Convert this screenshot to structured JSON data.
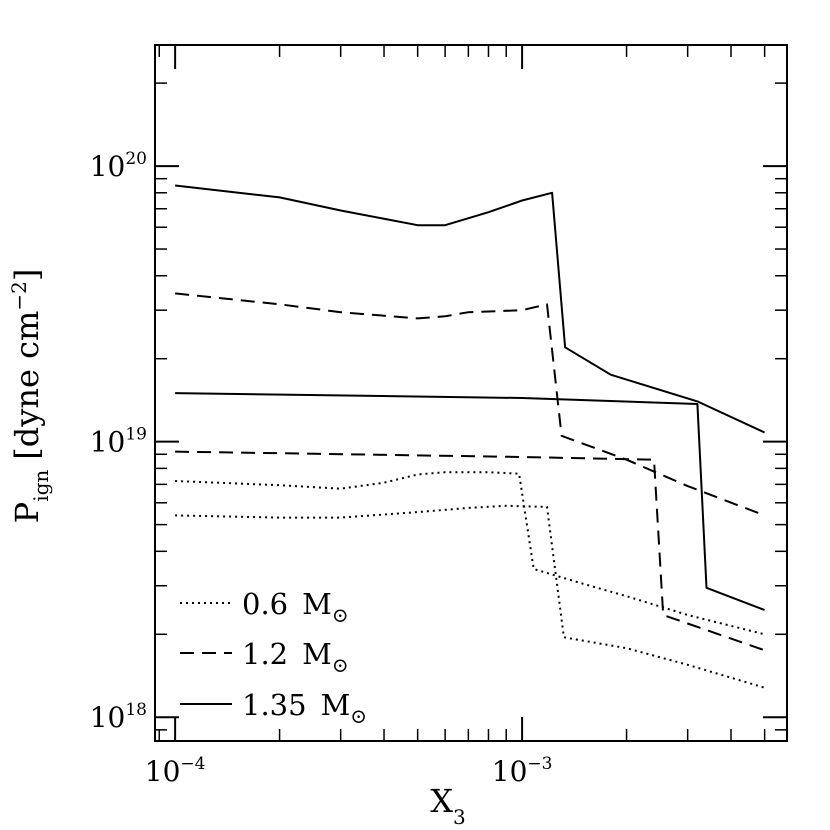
{
  "chart_data": {
    "type": "line",
    "xlabel": {
      "main": "X",
      "sub": "3"
    },
    "ylabel": {
      "main": "P",
      "sub": "ign",
      "unit_open": "[dyne cm",
      "unit_exp": "−2",
      "unit_close": "]"
    },
    "x_scale": "log",
    "y_scale": "log",
    "xlim": [
      8.75e-05,
      0.0058
    ],
    "ylim": [
      8.2e+17,
      2.75e+20
    ],
    "x_ticks": [
      {
        "value": 0.0001,
        "base": "10",
        "exp": "−4"
      },
      {
        "value": 0.001,
        "base": "10",
        "exp": "−3"
      }
    ],
    "y_ticks": [
      {
        "value": 1e+18,
        "base": "10",
        "exp": "18"
      },
      {
        "value": 1e+19,
        "base": "10",
        "exp": "19"
      },
      {
        "value": 1e+20,
        "base": "10",
        "exp": "20"
      }
    ],
    "grid": false,
    "legend_position": "bottom-left",
    "legend": [
      {
        "style": "dotted",
        "label": "0.6",
        "unit": "M",
        "unit_symbol": "⊙"
      },
      {
        "style": "dashed",
        "label": "1.2",
        "unit": "M",
        "unit_symbol": "⊙"
      },
      {
        "style": "solid",
        "label": "1.35",
        "unit": "M",
        "unit_symbol": "⊙"
      }
    ],
    "series": [
      {
        "style": "dotted",
        "points": [
          [
            0.0001,
            7.2e+18
          ],
          [
            0.0002,
            6.95e+18
          ],
          [
            0.0003,
            6.75e+18
          ],
          [
            0.0004,
            7.1e+18
          ],
          [
            0.0005,
            7.6e+18
          ],
          [
            0.0006,
            7.75e+18
          ],
          [
            0.0008,
            7.75e+18
          ],
          [
            0.00098,
            7.65e+18
          ],
          [
            0.00108,
            3.45e+18
          ],
          [
            0.0015,
            3.05e+18
          ],
          [
            0.002,
            2.75e+18
          ],
          [
            0.003,
            2.35e+18
          ],
          [
            0.005,
            2e+18
          ]
        ]
      },
      {
        "style": "dotted",
        "points": [
          [
            0.0001,
            5.4e+18
          ],
          [
            0.0002,
            5.3e+18
          ],
          [
            0.0003,
            5.3e+18
          ],
          [
            0.0005,
            5.55e+18
          ],
          [
            0.0007,
            5.75e+18
          ],
          [
            0.0009,
            5.85e+18
          ],
          [
            0.00118,
            5.8e+18
          ],
          [
            0.00132,
            1.95e+18
          ],
          [
            0.002,
            1.78e+18
          ],
          [
            0.003,
            1.55e+18
          ],
          [
            0.005,
            1.28e+18
          ]
        ]
      },
      {
        "style": "dashed",
        "points": [
          [
            0.0001,
            3.45e+19
          ],
          [
            0.0002,
            3.15e+19
          ],
          [
            0.0003,
            2.95e+19
          ],
          [
            0.0005,
            2.8e+19
          ],
          [
            0.0006,
            2.85e+19
          ],
          [
            0.0007,
            2.95e+19
          ],
          [
            0.001,
            3e+19
          ],
          [
            0.00118,
            3.15e+19
          ],
          [
            0.0013,
            1.05e+19
          ],
          [
            0.002,
            8.6e+18
          ],
          [
            0.003,
            6.9e+18
          ],
          [
            0.005,
            5.4e+18
          ]
        ]
      },
      {
        "style": "dashed",
        "points": [
          [
            0.0001,
            9.2e+18
          ],
          [
            0.001,
            8.8e+18
          ],
          [
            0.0024,
            8.6e+18
          ],
          [
            0.00255,
            2.35e+18
          ],
          [
            0.005,
            1.75e+18
          ]
        ]
      },
      {
        "style": "solid",
        "points": [
          [
            0.0001,
            8.5e+19
          ],
          [
            0.0002,
            7.7e+19
          ],
          [
            0.0003,
            6.9e+19
          ],
          [
            0.0005,
            6.1e+19
          ],
          [
            0.0006,
            6.1e+19
          ],
          [
            0.0008,
            6.8e+19
          ],
          [
            0.001,
            7.5e+19
          ],
          [
            0.00122,
            8e+19
          ],
          [
            0.00133,
            2.2e+19
          ],
          [
            0.0018,
            1.75e+19
          ],
          [
            0.0032,
            1.4e+19
          ],
          [
            0.005,
            1.08e+19
          ]
        ]
      },
      {
        "style": "solid",
        "points": [
          [
            0.0001,
            1.5e+19
          ],
          [
            0.001,
            1.44e+19
          ],
          [
            0.0032,
            1.37e+19
          ],
          [
            0.0034,
            2.95e+18
          ],
          [
            0.005,
            2.45e+18
          ]
        ]
      }
    ]
  }
}
